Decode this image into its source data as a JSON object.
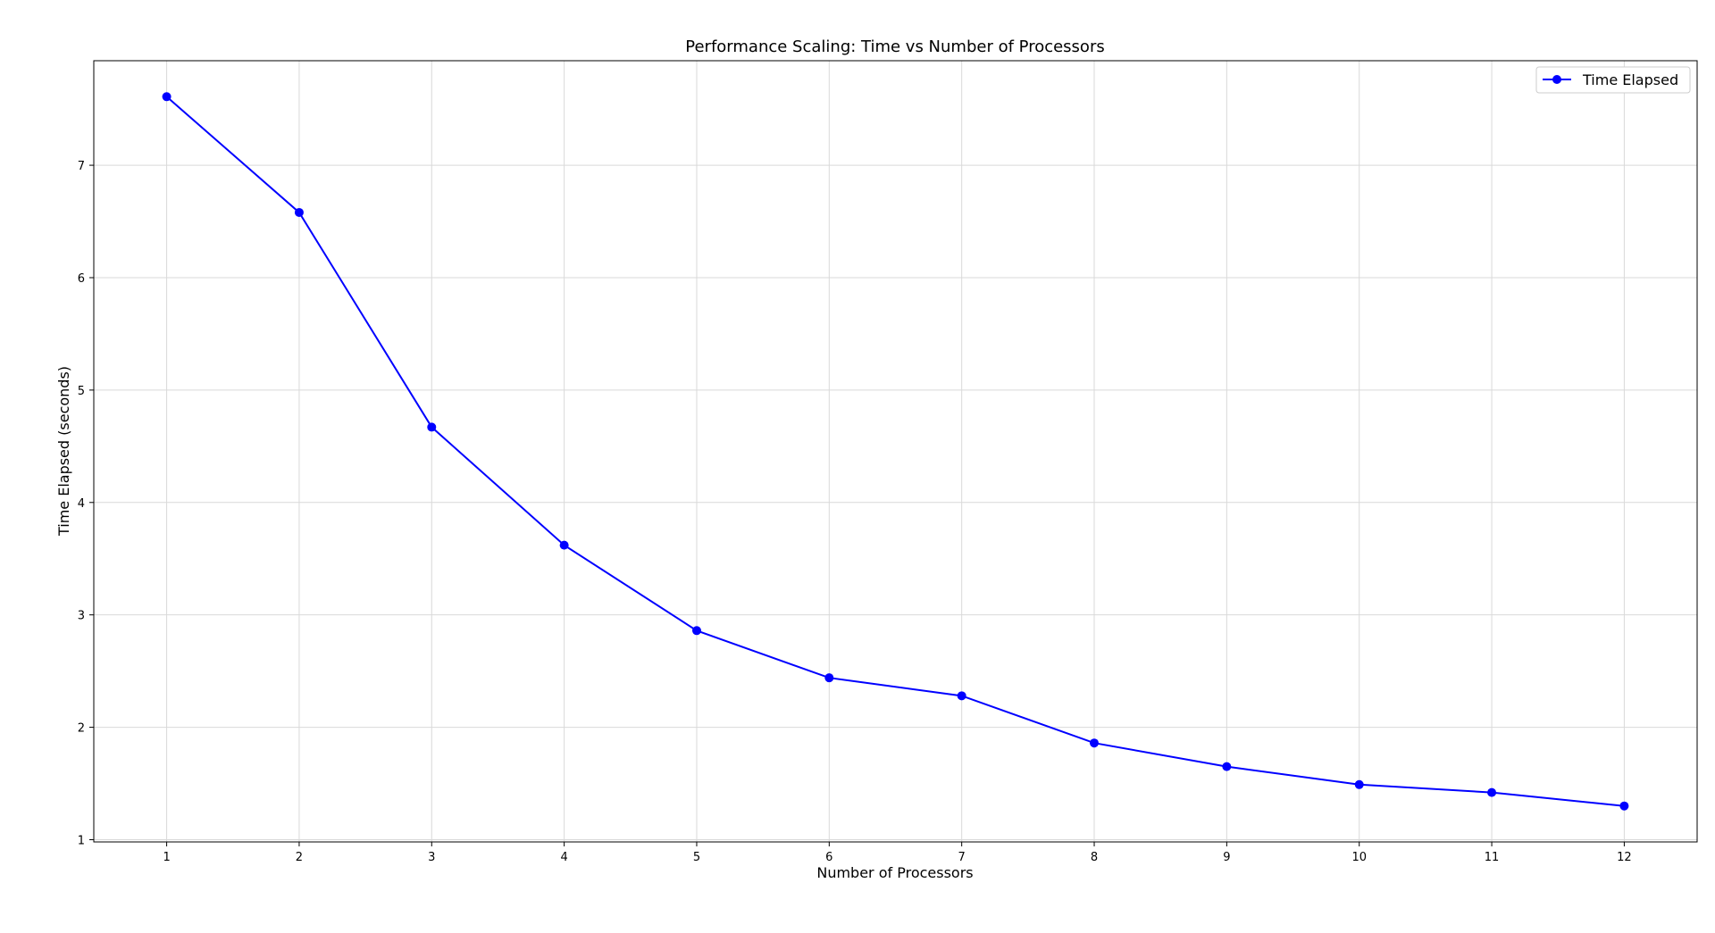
{
  "chart_data": {
    "type": "line",
    "title": "Performance Scaling: Time vs Number of Processors",
    "xlabel": "Number of Processors",
    "ylabel": "Time Elapsed (seconds)",
    "x": [
      1,
      2,
      3,
      4,
      5,
      6,
      7,
      8,
      9,
      10,
      11,
      12
    ],
    "series": [
      {
        "name": "Time Elapsed",
        "values": [
          7.61,
          6.58,
          4.67,
          3.62,
          2.86,
          2.44,
          2.28,
          1.86,
          1.65,
          1.49,
          1.42,
          1.3
        ],
        "color": "#0000ff",
        "marker": "circle"
      }
    ],
    "xlim": [
      0.45,
      12.55
    ],
    "ylim": [
      0.98,
      7.93
    ],
    "xticks": [
      "1",
      "2",
      "3",
      "4",
      "5",
      "6",
      "7",
      "8",
      "9",
      "10",
      "11",
      "12"
    ],
    "yticks": [
      "1",
      "2",
      "3",
      "4",
      "5",
      "6",
      "7"
    ],
    "grid": true,
    "legend_position": "top-right"
  }
}
